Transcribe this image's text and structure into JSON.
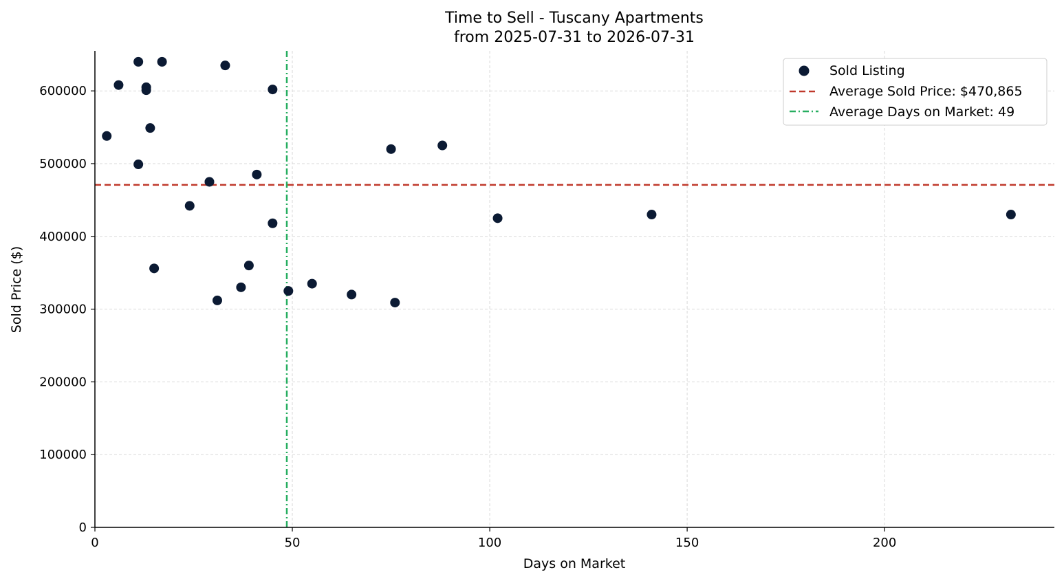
{
  "chart_data": {
    "type": "scatter",
    "title": "Time to Sell - Tuscany Apartments",
    "subtitle": "from 2025-07-31 to 2026-07-31",
    "xlabel": "Days on Market",
    "ylabel": "Sold Price ($)",
    "xlim": [
      0,
      243
    ],
    "ylim": [
      0,
      655000
    ],
    "xticks": [
      0,
      50,
      100,
      150,
      200
    ],
    "yticks": [
      0,
      100000,
      200000,
      300000,
      400000,
      500000,
      600000
    ],
    "grid": true,
    "legend_position": "top-right",
    "points": [
      {
        "x": 3,
        "y": 538000
      },
      {
        "x": 6,
        "y": 608000
      },
      {
        "x": 11,
        "y": 640000
      },
      {
        "x": 11,
        "y": 499000
      },
      {
        "x": 13,
        "y": 605000
      },
      {
        "x": 13,
        "y": 601000
      },
      {
        "x": 14,
        "y": 549000
      },
      {
        "x": 15,
        "y": 356000
      },
      {
        "x": 17,
        "y": 640000
      },
      {
        "x": 24,
        "y": 442000
      },
      {
        "x": 29,
        "y": 475000
      },
      {
        "x": 31,
        "y": 312000
      },
      {
        "x": 33,
        "y": 635000
      },
      {
        "x": 37,
        "y": 330000
      },
      {
        "x": 39,
        "y": 360000
      },
      {
        "x": 41,
        "y": 485000
      },
      {
        "x": 45,
        "y": 602000
      },
      {
        "x": 45,
        "y": 418000
      },
      {
        "x": 49,
        "y": 325000
      },
      {
        "x": 55,
        "y": 335000
      },
      {
        "x": 65,
        "y": 320000
      },
      {
        "x": 75,
        "y": 520000
      },
      {
        "x": 76,
        "y": 309000
      },
      {
        "x": 88,
        "y": 525000
      },
      {
        "x": 102,
        "y": 425000
      },
      {
        "x": 141,
        "y": 430000
      },
      {
        "x": 232,
        "y": 430000
      }
    ],
    "average_price": 470865,
    "average_days": 48.6,
    "legend": {
      "points": "Sold Listing",
      "avg_price": "Average Sold Price: $470,865",
      "avg_days": "Average Days on Market: 49"
    },
    "colors": {
      "points": "#0b1a33",
      "avg_price": "#c0392b",
      "avg_days": "#27ae60",
      "grid": "#d9d9d9",
      "axis": "#000000"
    }
  }
}
